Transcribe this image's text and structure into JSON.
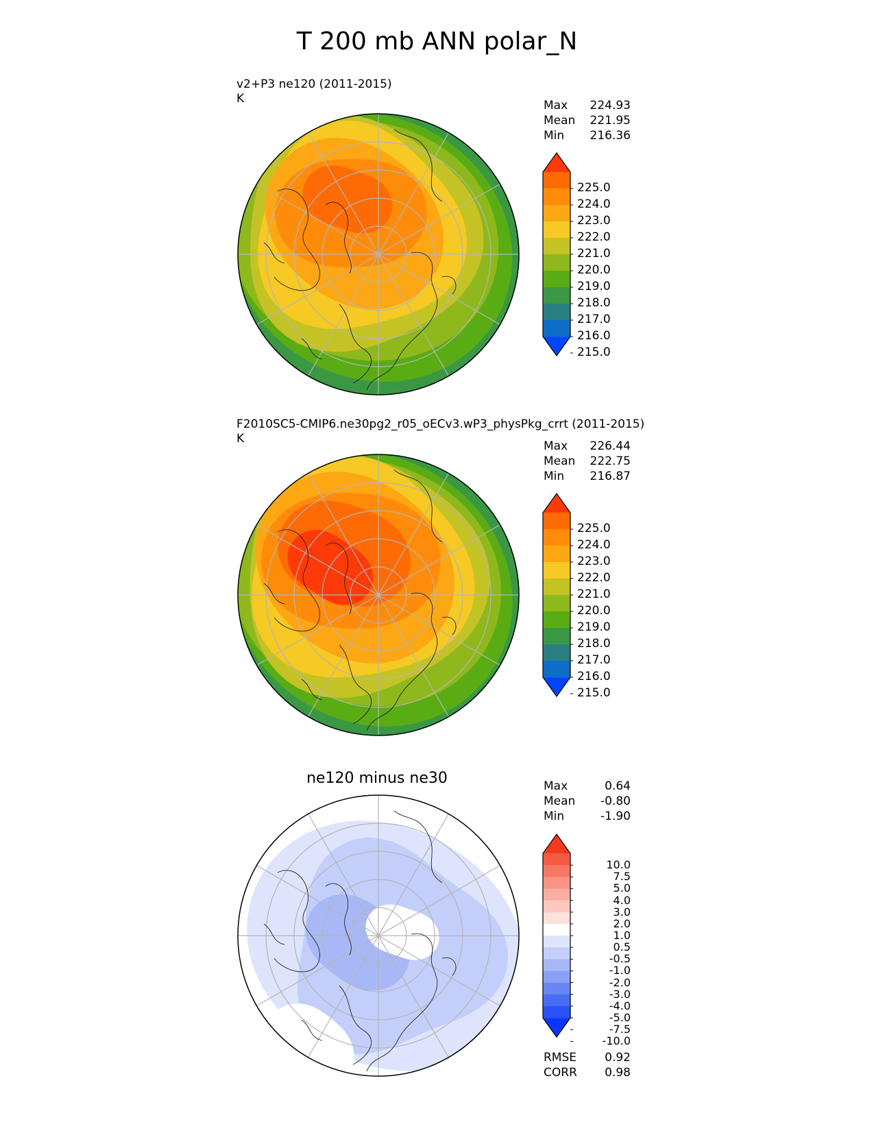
{
  "title": "T 200 mb ANN polar_N",
  "panels": [
    {
      "name": "test",
      "title_line1": "v2+P3 ne120 (2011-2015)",
      "title_line2": "K",
      "stats": [
        [
          "Max",
          "224.93"
        ],
        [
          "Mean",
          "221.95"
        ],
        [
          "Min",
          "216.36"
        ]
      ],
      "cbar": {
        "colors": [
          "#0046ff",
          "#0d6dc9",
          "#2a8080",
          "#3a9845",
          "#5aac15",
          "#8fb81d",
          "#c4c325",
          "#f6c925",
          "#fda715",
          "#fe8c0a",
          "#fe6b05",
          "#fe3a08"
        ],
        "labels": [
          "225.0",
          "224.0",
          "223.0",
          "222.0",
          "221.0",
          "220.0",
          "219.0",
          "218.0",
          "217.0",
          "216.0",
          "215.0"
        ]
      }
    },
    {
      "name": "reference",
      "title_line1": "F2010SC5-CMIP6.ne30pg2_r05_oECv3.wP3_physPkg_crrt (2011-2015)",
      "title_line2": "K",
      "stats": [
        [
          "Max",
          "226.44"
        ],
        [
          "Mean",
          "222.75"
        ],
        [
          "Min",
          "216.87"
        ]
      ],
      "cbar": {
        "colors": [
          "#0046ff",
          "#0d6dc9",
          "#2a8080",
          "#3a9845",
          "#5aac15",
          "#8fb81d",
          "#c4c325",
          "#f6c925",
          "#fda715",
          "#fe8c0a",
          "#fe6b05",
          "#fe3a08"
        ],
        "labels": [
          "225.0",
          "224.0",
          "223.0",
          "222.0",
          "221.0",
          "220.0",
          "219.0",
          "218.0",
          "217.0",
          "216.0",
          "215.0"
        ]
      }
    },
    {
      "name": "diff",
      "title_center": "ne120 minus ne30",
      "stats": [
        [
          "Max",
          "0.64"
        ],
        [
          "Mean",
          "-0.80"
        ],
        [
          "Min",
          "-1.90"
        ]
      ],
      "metrics": [
        [
          "RMSE",
          "0.92"
        ],
        [
          "CORR",
          "0.98"
        ]
      ],
      "cbar": {
        "colors": [
          "#0c36ff",
          "#2a52f8",
          "#4a6df5",
          "#6887f5",
          "#8aa1f6",
          "#a8b8f7",
          "#c3cffa",
          "#dde4fc",
          "#ffffff",
          "#fde0dc",
          "#fcc8c0",
          "#fbada1",
          "#f99383",
          "#f77866",
          "#f55a42",
          "#f33a1e"
        ],
        "labels": [
          "10.0",
          "7.5",
          "5.0",
          "4.0",
          "3.0",
          "2.0",
          "1.0",
          "0.5",
          "-0.5",
          "-1.0",
          "-2.0",
          "-3.0",
          "-4.0",
          "-5.0",
          "-7.5",
          "-10.0"
        ]
      }
    }
  ],
  "chart_data": [
    {
      "type": "heatmap",
      "projection": "polar_N",
      "title": "v2+P3 ne120 (2011-2015)",
      "units": "K",
      "variable": "T 200 mb ANN",
      "max": 224.93,
      "mean": 221.95,
      "min": 216.36,
      "contour_levels": [
        215.0,
        216.0,
        217.0,
        218.0,
        219.0,
        220.0,
        221.0,
        222.0,
        223.0,
        224.0,
        225.0
      ]
    },
    {
      "type": "heatmap",
      "projection": "polar_N",
      "title": "F2010SC5-CMIP6.ne30pg2_r05_oECv3.wP3_physPkg_crrt (2011-2015)",
      "units": "K",
      "variable": "T 200 mb ANN",
      "max": 226.44,
      "mean": 222.75,
      "min": 216.87,
      "contour_levels": [
        215.0,
        216.0,
        217.0,
        218.0,
        219.0,
        220.0,
        221.0,
        222.0,
        223.0,
        224.0,
        225.0
      ]
    },
    {
      "type": "heatmap",
      "projection": "polar_N",
      "title": "ne120 minus ne30",
      "max": 0.64,
      "mean": -0.8,
      "min": -1.9,
      "rmse": 0.92,
      "corr": 0.98,
      "contour_levels": [
        -10.0,
        -7.5,
        -5.0,
        -4.0,
        -3.0,
        -2.0,
        -1.0,
        -0.5,
        0.5,
        1.0,
        2.0,
        3.0,
        4.0,
        5.0,
        7.5,
        10.0
      ]
    }
  ]
}
